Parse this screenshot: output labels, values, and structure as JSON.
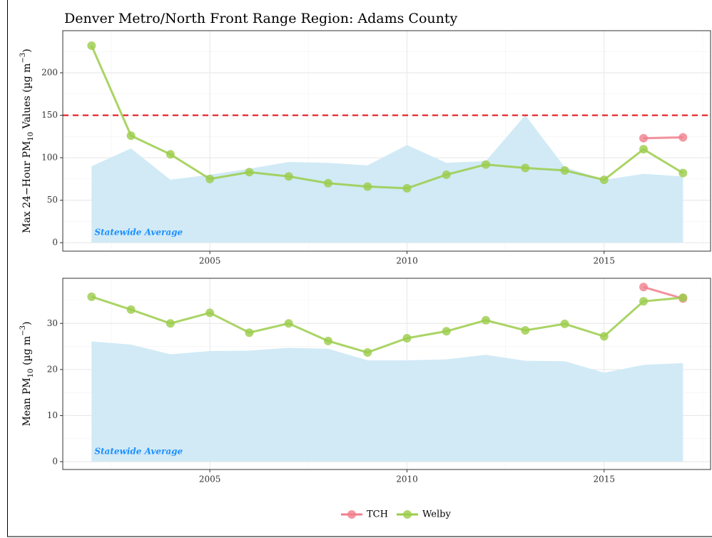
{
  "chart_data": [
    {
      "type": "line",
      "title": "Denver Metro/North Front Range Region: Adams County",
      "ylabel": [
        "Max 24−Hour PM",
        "10",
        " Values (µg m",
        "−3",
        ")"
      ],
      "x": [
        2002,
        2003,
        2004,
        2005,
        2006,
        2007,
        2008,
        2009,
        2010,
        2011,
        2012,
        2013,
        2014,
        2015,
        2016,
        2017
      ],
      "xlim": [
        2001.27,
        2017.7
      ],
      "xticks": [
        2005,
        2010,
        2015
      ],
      "xminor": [
        2002.5,
        2007.5,
        2012.5,
        2017.5
      ],
      "ylim": [
        -10,
        249.6
      ],
      "yticks": [
        0,
        50,
        100,
        150,
        200
      ],
      "yminor": [
        25,
        75,
        125,
        175,
        225
      ],
      "grid": true,
      "area": {
        "name": "Statewide Average",
        "color": "#d1eaf6",
        "values": [
          90,
          111,
          74,
          80,
          87,
          95,
          94,
          91,
          115,
          94,
          96,
          150,
          89,
          74,
          81,
          78
        ]
      },
      "hline": {
        "value": 150,
        "color": "#e8191e"
      },
      "series": [
        {
          "name": "TCH",
          "color": "#f07f8c",
          "values": [
            null,
            null,
            null,
            null,
            null,
            null,
            null,
            null,
            null,
            null,
            null,
            null,
            null,
            null,
            123,
            124
          ]
        },
        {
          "name": "Welby",
          "color": "#9bcc4a",
          "values": [
            232,
            126,
            104,
            75,
            83,
            78,
            70,
            66,
            64,
            80,
            92,
            88,
            85,
            74,
            110,
            82
          ]
        }
      ]
    },
    {
      "type": "line",
      "ylabel": [
        "Mean PM",
        "10",
        " (µg m",
        "−3",
        ")"
      ],
      "x": [
        2002,
        2003,
        2004,
        2005,
        2006,
        2007,
        2008,
        2009,
        2010,
        2011,
        2012,
        2013,
        2014,
        2015,
        2016,
        2017
      ],
      "xlim": [
        2001.27,
        2017.7
      ],
      "xticks": [
        2005,
        2010,
        2015
      ],
      "xminor": [
        2002.5,
        2007.5,
        2012.5,
        2017.5
      ],
      "ylim": [
        -1.7,
        39.8
      ],
      "yticks": [
        0,
        10,
        20,
        30
      ],
      "yminor": [
        5,
        15,
        25,
        35
      ],
      "grid": true,
      "area": {
        "name": "Statewide Average",
        "color": "#d1eaf6",
        "values": [
          26.1,
          25.4,
          23.3,
          24,
          24.1,
          24.7,
          24.5,
          22,
          22,
          22.2,
          23.2,
          21.9,
          21.8,
          19.3,
          21,
          21.4
        ]
      },
      "series": [
        {
          "name": "TCH",
          "color": "#f07f8c",
          "values": [
            null,
            null,
            null,
            null,
            null,
            null,
            null,
            null,
            null,
            null,
            null,
            null,
            null,
            null,
            37.9,
            35.4
          ]
        },
        {
          "name": "Welby",
          "color": "#9bcc4a",
          "values": [
            35.8,
            33,
            30,
            32.3,
            28,
            30,
            26.2,
            23.7,
            26.8,
            28.3,
            30.7,
            28.5,
            29.9,
            27.2,
            34.8,
            35.6
          ]
        }
      ]
    }
  ]
}
